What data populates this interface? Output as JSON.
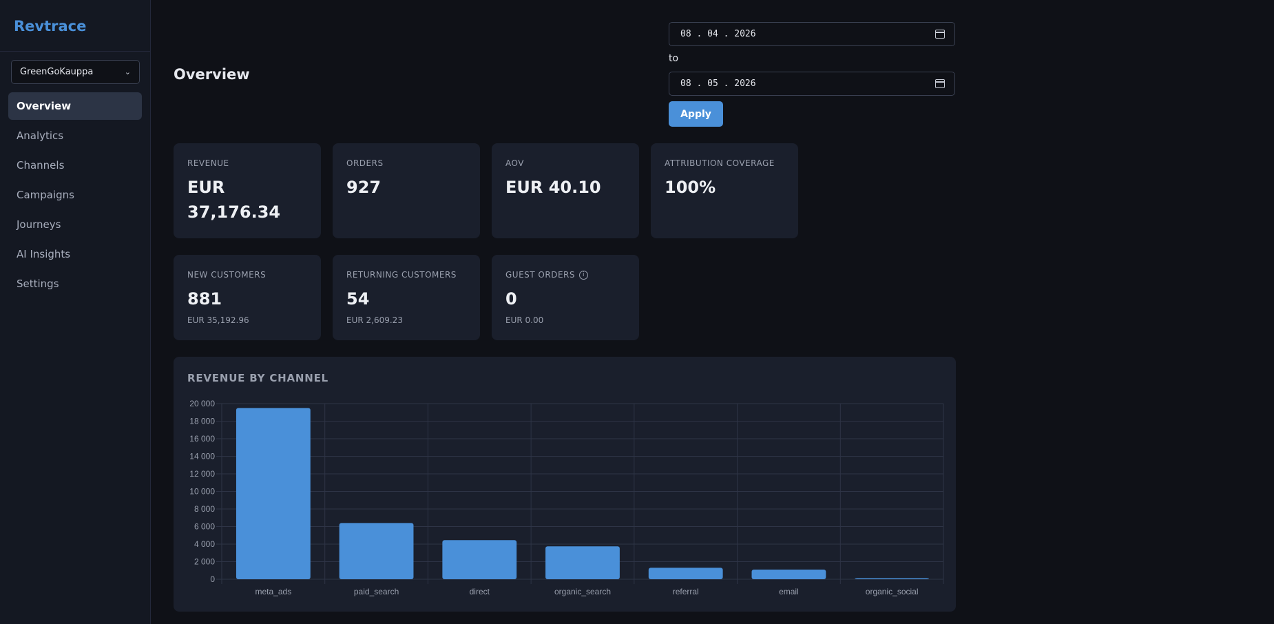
{
  "app": {
    "brand": "Revtrace"
  },
  "store_selector": {
    "value": "GreenGoKauppa"
  },
  "sidebar": {
    "items": [
      {
        "label": "Overview",
        "active": true
      },
      {
        "label": "Analytics"
      },
      {
        "label": "Channels"
      },
      {
        "label": "Campaigns"
      },
      {
        "label": "Journeys"
      },
      {
        "label": "AI Insights"
      },
      {
        "label": "Settings"
      }
    ]
  },
  "header": {
    "title": "Overview",
    "date_from": "08 . 04 . 2026",
    "to_label": "to",
    "date_to": "08 . 05 . 2026",
    "apply_label": "Apply"
  },
  "kpis": [
    {
      "label": "REVENUE",
      "value": "EUR 37,176.34"
    },
    {
      "label": "ORDERS",
      "value": "927"
    },
    {
      "label": "AOV",
      "value": "EUR 40.10"
    },
    {
      "label": "ATTRIBUTION COVERAGE",
      "value": "100%"
    }
  ],
  "customers": [
    {
      "label": "NEW CUSTOMERS",
      "value": "881",
      "sub": "EUR 35,192.96"
    },
    {
      "label": "RETURNING CUSTOMERS",
      "value": "54",
      "sub": "EUR 2,609.23"
    },
    {
      "label": "GUEST ORDERS",
      "value": "0",
      "sub": "EUR 0.00",
      "info_icon": "info-icon"
    }
  ],
  "chart": {
    "title": "REVENUE BY CHANNEL"
  },
  "chart_data": {
    "type": "bar",
    "categories": [
      "meta_ads",
      "paid_search",
      "direct",
      "organic_search",
      "referral",
      "email",
      "organic_social"
    ],
    "values": [
      19500,
      6400,
      4450,
      3750,
      1300,
      1100,
      100
    ],
    "ylim": [
      0,
      20000
    ],
    "yticks": [
      "0",
      "2 000",
      "4 000",
      "6 000",
      "8 000",
      "10 000",
      "12 000",
      "14 000",
      "16 000",
      "18 000",
      "20 000"
    ],
    "color": "#4a90d9",
    "grid": true
  },
  "colors": {
    "accent": "#4a90d9",
    "background": "#0f1117",
    "card": "#1a1f2c"
  }
}
